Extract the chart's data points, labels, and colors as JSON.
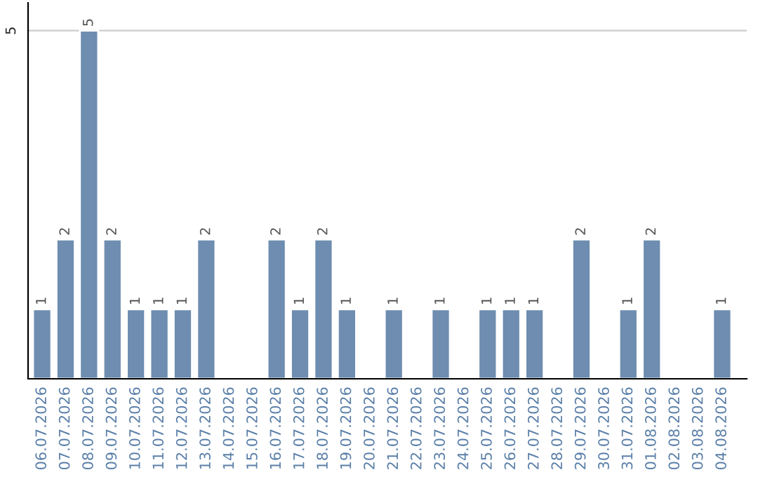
{
  "chart_data": {
    "type": "bar",
    "categories": [
      "06.07.2026",
      "07.07.2026",
      "08.07.2026",
      "09.07.2026",
      "10.07.2026",
      "11.07.2026",
      "12.07.2026",
      "13.07.2026",
      "14.07.2026",
      "15.07.2026",
      "16.07.2026",
      "17.07.2026",
      "18.07.2026",
      "19.07.2026",
      "20.07.2026",
      "21.07.2026",
      "22.07.2026",
      "23.07.2026",
      "24.07.2026",
      "25.07.2026",
      "26.07.2026",
      "27.07.2026",
      "28.07.2026",
      "29.07.2026",
      "30.07.2026",
      "31.07.2026",
      "01.08.2026",
      "02.08.2026",
      "03.08.2026",
      "04.08.2026"
    ],
    "values": [
      1,
      2,
      5,
      2,
      1,
      1,
      1,
      2,
      null,
      null,
      2,
      1,
      2,
      1,
      null,
      1,
      null,
      1,
      null,
      1,
      1,
      1,
      null,
      2,
      null,
      1,
      2,
      null,
      null,
      1
    ],
    "value_labels": [
      "1",
      "2",
      "5",
      "2",
      "1",
      "1",
      "1",
      "2",
      null,
      null,
      "2",
      "1",
      "2",
      "1",
      null,
      "1",
      null,
      "1",
      null,
      "1",
      "1",
      "1",
      null,
      "2",
      null,
      "1",
      "2",
      null,
      null,
      "1"
    ],
    "color": "#6e8db0",
    "ylim": [
      0,
      5.4
    ],
    "yticks": [
      5
    ],
    "grid": "y"
  }
}
